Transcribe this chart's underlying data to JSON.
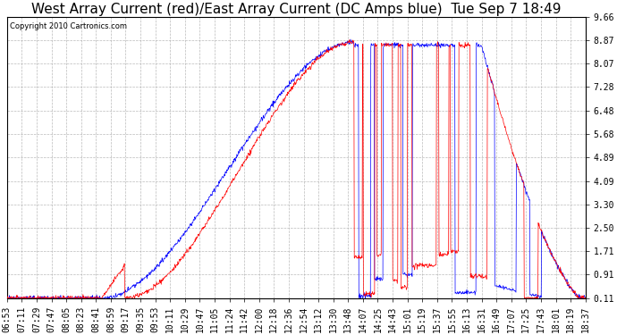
{
  "title": "West Array Current (red)/East Array Current (DC Amps blue)  Tue Sep 7 18:49",
  "copyright": "Copyright 2010 Cartronics.com",
  "yticks": [
    0.11,
    0.91,
    1.71,
    2.5,
    3.3,
    4.09,
    4.89,
    5.68,
    6.48,
    7.28,
    8.07,
    8.87,
    9.66
  ],
  "ymin": 0.11,
  "ymax": 9.66,
  "xtick_labels": [
    "06:53",
    "07:11",
    "07:29",
    "07:47",
    "08:05",
    "08:23",
    "08:41",
    "08:59",
    "09:17",
    "09:35",
    "09:53",
    "10:11",
    "10:29",
    "10:47",
    "11:05",
    "11:24",
    "11:42",
    "12:00",
    "12:18",
    "12:36",
    "12:54",
    "13:12",
    "13:30",
    "13:48",
    "14:07",
    "14:25",
    "14:43",
    "15:01",
    "15:19",
    "15:37",
    "15:55",
    "16:13",
    "16:31",
    "16:49",
    "17:07",
    "17:25",
    "17:43",
    "18:01",
    "18:19",
    "18:37"
  ],
  "bg_color": "#FFFFFF",
  "plot_bg_color": "#FFFFFF",
  "grid_color": "#AAAAAA",
  "red_color": "#FF0000",
  "blue_color": "#0000FF",
  "title_fontsize": 11,
  "tick_fontsize": 7,
  "fig_width": 6.9,
  "fig_height": 3.75,
  "fig_dpi": 100
}
